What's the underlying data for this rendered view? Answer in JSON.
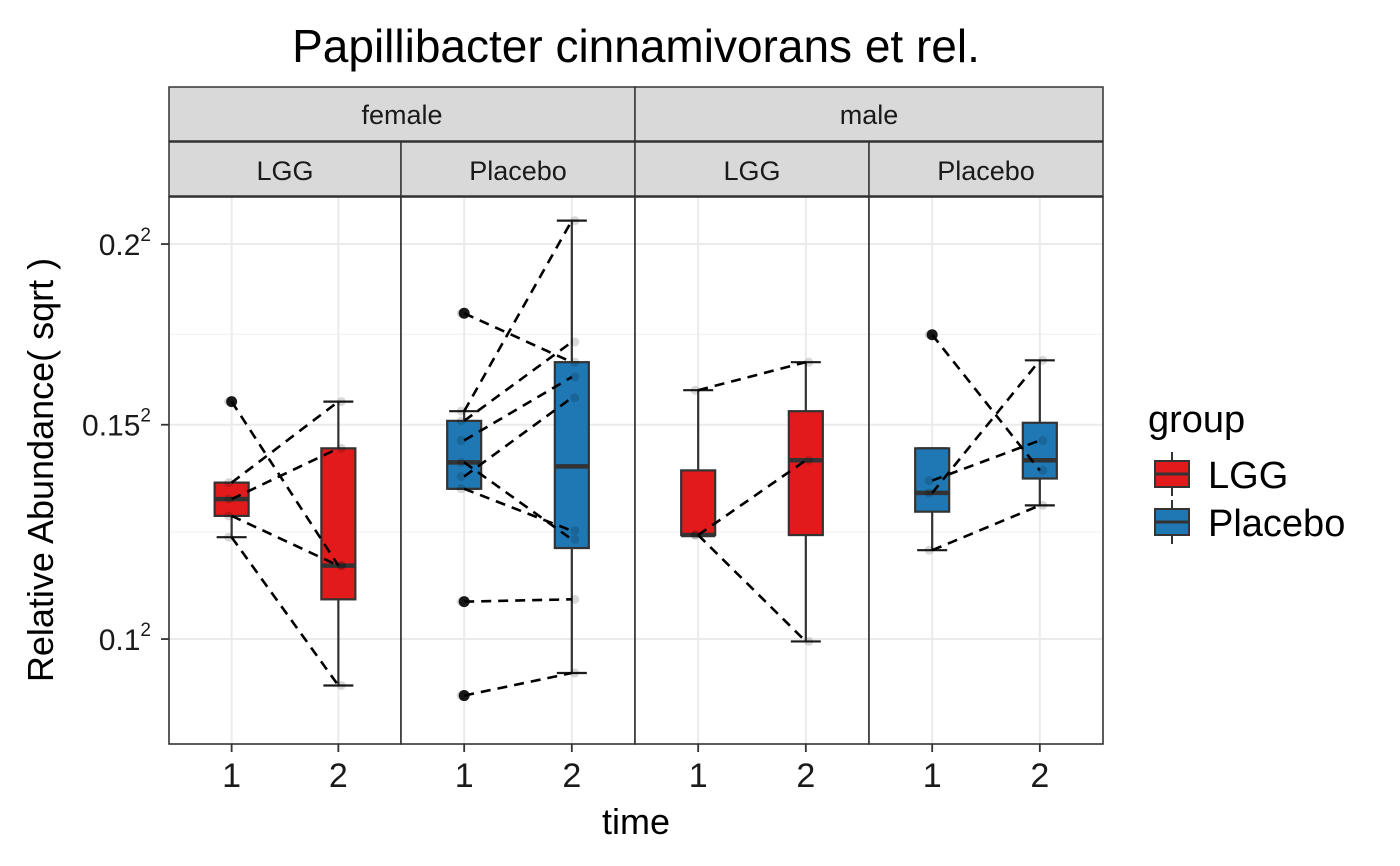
{
  "chart_data": {
    "type": "box",
    "title": "Papillibacter cinnamivorans et rel.",
    "xlabel": "time",
    "ylabel": "Relative Abundance( sqrt )",
    "y_scale": "sqrt",
    "ylim": [
      0.0792,
      0.2142
    ],
    "y_ticks": [
      {
        "value": 0.2,
        "label": "0.2",
        "exp": "2"
      },
      {
        "value": 0.15,
        "label": "0.15",
        "exp": "2"
      },
      {
        "value": 0.1,
        "label": "0.1",
        "exp": "2"
      }
    ],
    "x_categories": [
      "1",
      "2"
    ],
    "legend": {
      "title": "group",
      "placement": "right",
      "items": [
        {
          "label": "LGG",
          "color": "#e31a1c"
        },
        {
          "label": "Placebo",
          "color": "#1f78b4"
        }
      ]
    },
    "strips": {
      "top": [
        {
          "label": "female"
        },
        {
          "label": "male"
        }
      ]
    },
    "panels": [
      {
        "sex": "female",
        "group": "LGG",
        "color": "#e31a1c",
        "boxes": [
          {
            "time": "1",
            "min": 0.1225,
            "q1": 0.1275,
            "median": 0.1315,
            "q3": 0.1355,
            "max": 0.1355,
            "outliers": [
              0.156
            ]
          },
          {
            "time": "2",
            "min": 0.0905,
            "q1": 0.1085,
            "median": 0.116,
            "q3": 0.144,
            "max": 0.156,
            "outliers": []
          }
        ],
        "lines": [
          [
            0.156,
            0.116
          ],
          [
            0.1355,
            0.156
          ],
          [
            0.1315,
            0.144
          ],
          [
            0.1275,
            0.116
          ],
          [
            0.1225,
            0.0905
          ]
        ]
      },
      {
        "sex": "female",
        "group": "Placebo",
        "color": "#1f78b4",
        "boxes": [
          {
            "time": "1",
            "min": 0.134,
            "q1": 0.134,
            "median": 0.1405,
            "q3": 0.151,
            "max": 0.1535,
            "outliers": [
              0.18,
              0.108,
              0.0885
            ]
          },
          {
            "time": "2",
            "min": 0.093,
            "q1": 0.12,
            "median": 0.1395,
            "q3": 0.1665,
            "max": 0.207,
            "outliers": []
          }
        ],
        "lines": [
          [
            0.18,
            0.1665
          ],
          [
            0.1535,
            0.207
          ],
          [
            0.151,
            0.172
          ],
          [
            0.146,
            0.1625
          ],
          [
            0.1405,
            0.122
          ],
          [
            0.137,
            0.157
          ],
          [
            0.134,
            0.124
          ],
          [
            0.108,
            0.1085
          ],
          [
            0.0885,
            0.093
          ]
        ]
      },
      {
        "sex": "male",
        "group": "LGG",
        "color": "#e31a1c",
        "boxes": [
          {
            "time": "1",
            "min": 0.123,
            "q1": 0.123,
            "median": 0.123,
            "q3": 0.1385,
            "max": 0.159,
            "outliers": []
          },
          {
            "time": "2",
            "min": 0.0995,
            "q1": 0.123,
            "median": 0.141,
            "q3": 0.1535,
            "max": 0.1665,
            "outliers": []
          }
        ],
        "lines": [
          [
            0.159,
            0.1665
          ],
          [
            0.123,
            0.141
          ],
          [
            0.123,
            0.0995
          ]
        ]
      },
      {
        "sex": "male",
        "group": "Placebo",
        "color": "#1f78b4",
        "boxes": [
          {
            "time": "1",
            "min": 0.1195,
            "q1": 0.1285,
            "median": 0.133,
            "q3": 0.144,
            "max": 0.144,
            "outliers": [
              0.174
            ]
          },
          {
            "time": "2",
            "min": 0.13,
            "q1": 0.1365,
            "median": 0.141,
            "q3": 0.1505,
            "max": 0.167,
            "outliers": []
          }
        ],
        "lines": [
          [
            0.174,
            0.1385
          ],
          [
            0.133,
            0.167
          ],
          [
            0.136,
            0.146
          ],
          [
            0.1195,
            0.13
          ]
        ]
      }
    ]
  }
}
